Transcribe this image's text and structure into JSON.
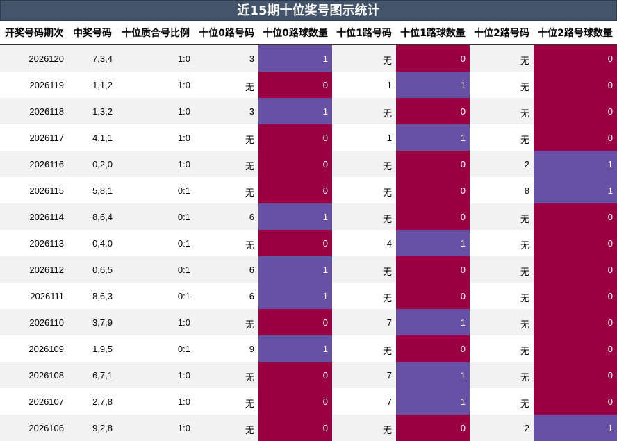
{
  "title": "近15期十位奖号图示统计",
  "headers": [
    "开奖号码期次",
    "中奖号码",
    "十位质合号比例",
    "十位0路号码",
    "十位0路球数量",
    "十位1路号码",
    "十位1路球数量",
    "十位2路号码",
    "十位2路号球数量"
  ],
  "colors": {
    "zero": "#9b0043",
    "one": "#6651a5",
    "title_bg": "#44546a"
  },
  "rows": [
    {
      "issue": "2026120",
      "number": "7,3,4",
      "ratio": "1:0",
      "r0": "3",
      "c0": "1",
      "r1": "无",
      "c1": "0",
      "r2": "无",
      "c2": "0"
    },
    {
      "issue": "2026119",
      "number": "1,1,2",
      "ratio": "1:0",
      "r0": "无",
      "c0": "0",
      "r1": "1",
      "c1": "1",
      "r2": "无",
      "c2": "0"
    },
    {
      "issue": "2026118",
      "number": "1,3,2",
      "ratio": "1:0",
      "r0": "3",
      "c0": "1",
      "r1": "无",
      "c1": "0",
      "r2": "无",
      "c2": "0"
    },
    {
      "issue": "2026117",
      "number": "4,1,1",
      "ratio": "1:0",
      "r0": "无",
      "c0": "0",
      "r1": "1",
      "c1": "1",
      "r2": "无",
      "c2": "0"
    },
    {
      "issue": "2026116",
      "number": "0,2,0",
      "ratio": "1:0",
      "r0": "无",
      "c0": "0",
      "r1": "无",
      "c1": "0",
      "r2": "2",
      "c2": "1"
    },
    {
      "issue": "2026115",
      "number": "5,8,1",
      "ratio": "0:1",
      "r0": "无",
      "c0": "0",
      "r1": "无",
      "c1": "0",
      "r2": "8",
      "c2": "1"
    },
    {
      "issue": "2026114",
      "number": "8,6,4",
      "ratio": "0:1",
      "r0": "6",
      "c0": "1",
      "r1": "无",
      "c1": "0",
      "r2": "无",
      "c2": "0"
    },
    {
      "issue": "2026113",
      "number": "0,4,0",
      "ratio": "0:1",
      "r0": "无",
      "c0": "0",
      "r1": "4",
      "c1": "1",
      "r2": "无",
      "c2": "0"
    },
    {
      "issue": "2026112",
      "number": "0,6,5",
      "ratio": "0:1",
      "r0": "6",
      "c0": "1",
      "r1": "无",
      "c1": "0",
      "r2": "无",
      "c2": "0"
    },
    {
      "issue": "2026111",
      "number": "8,6,3",
      "ratio": "0:1",
      "r0": "6",
      "c0": "1",
      "r1": "无",
      "c1": "0",
      "r2": "无",
      "c2": "0"
    },
    {
      "issue": "2026110",
      "number": "3,7,9",
      "ratio": "1:0",
      "r0": "无",
      "c0": "0",
      "r1": "7",
      "c1": "1",
      "r2": "无",
      "c2": "0"
    },
    {
      "issue": "2026109",
      "number": "1,9,5",
      "ratio": "0:1",
      "r0": "9",
      "c0": "1",
      "r1": "无",
      "c1": "0",
      "r2": "无",
      "c2": "0"
    },
    {
      "issue": "2026108",
      "number": "6,7,1",
      "ratio": "1:0",
      "r0": "无",
      "c0": "0",
      "r1": "7",
      "c1": "1",
      "r2": "无",
      "c2": "0"
    },
    {
      "issue": "2026107",
      "number": "2,7,8",
      "ratio": "1:0",
      "r0": "无",
      "c0": "0",
      "r1": "7",
      "c1": "1",
      "r2": "无",
      "c2": "0"
    },
    {
      "issue": "2026106",
      "number": "9,2,8",
      "ratio": "1:0",
      "r0": "无",
      "c0": "0",
      "r1": "无",
      "c1": "0",
      "r2": "2",
      "c2": "1"
    }
  ]
}
